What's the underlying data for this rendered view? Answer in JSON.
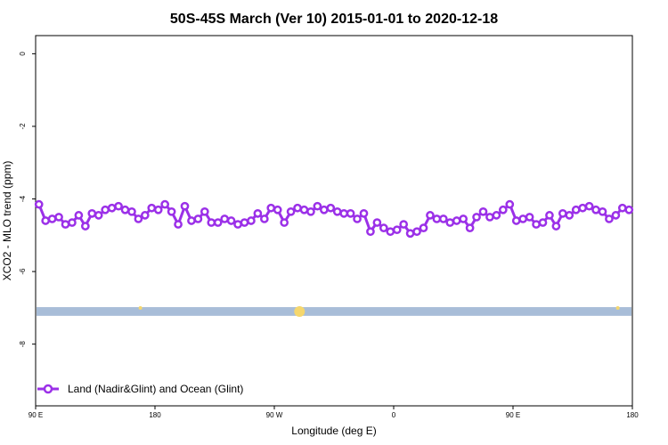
{
  "chart_data": {
    "type": "line",
    "title": "50S-45S March (Ver 10)   2015-01-01 to 2020-12-18",
    "xlabel": "Longitude (deg E)",
    "ylabel": "XCO2 - MLO trend (ppm)",
    "x_ticks": [
      {
        "value": 90,
        "label": "90 E"
      },
      {
        "value": 180,
        "label": "180"
      },
      {
        "value": 270,
        "label": "90 W"
      },
      {
        "value": 360,
        "label": "0"
      },
      {
        "value": 450,
        "label": "90 E"
      },
      {
        "value": 540,
        "label": "180"
      }
    ],
    "y_ticks": [
      {
        "value": 0,
        "label": "0"
      },
      {
        "value": -2,
        "label": "-2"
      },
      {
        "value": -4,
        "label": "-4"
      },
      {
        "value": -6,
        "label": "-6"
      },
      {
        "value": -8,
        "label": "-8"
      }
    ],
    "xlim": [
      90,
      540
    ],
    "ylim": [
      -9.7,
      0.5
    ],
    "grid": false,
    "legend_position": "bottom-left",
    "series": [
      {
        "name": "Land (Nadir&Glint) and Ocean (Glint)",
        "color": "#9b30e8",
        "marker": "open-circle",
        "x": [
          92.5,
          97.5,
          102.5,
          107.5,
          112.5,
          117.5,
          122.5,
          127.5,
          132.5,
          137.5,
          142.5,
          147.5,
          152.5,
          157.5,
          162.5,
          167.5,
          172.5,
          177.5,
          182.5,
          187.5,
          192.5,
          197.5,
          202.5,
          207.5,
          212.5,
          217.5,
          222.5,
          227.5,
          232.5,
          237.5,
          242.5,
          247.5,
          252.5,
          257.5,
          262.5,
          267.5,
          272.5,
          277.5,
          282.5,
          287.5,
          292.5,
          297.5,
          302.5,
          307.5,
          312.5,
          317.5,
          322.5,
          327.5,
          332.5,
          337.5,
          342.5,
          347.5,
          352.5,
          357.5,
          362.5,
          367.5,
          372.5,
          377.5,
          382.5,
          387.5,
          392.5,
          397.5,
          402.5,
          407.5,
          412.5,
          417.5,
          422.5,
          427.5,
          432.5,
          437.5,
          442.5,
          447.5,
          452.5,
          457.5,
          462.5,
          467.5,
          472.5,
          477.5,
          482.5,
          487.5,
          492.5,
          497.5,
          502.5,
          507.5,
          512.5,
          517.5,
          522.5,
          527.5,
          532.5,
          537.5
        ],
        "y": [
          -4.15,
          -4.6,
          -4.55,
          -4.5,
          -4.7,
          -4.65,
          -4.45,
          -4.75,
          -4.4,
          -4.45,
          -4.3,
          -4.25,
          -4.2,
          -4.3,
          -4.35,
          -4.55,
          -4.45,
          -4.25,
          -4.3,
          -4.15,
          -4.35,
          -4.7,
          -4.2,
          -4.6,
          -4.55,
          -4.35,
          -4.65,
          -4.65,
          -4.55,
          -4.6,
          -4.7,
          -4.65,
          -4.6,
          -4.4,
          -4.55,
          -4.25,
          -4.3,
          -4.65,
          -4.35,
          -4.25,
          -4.3,
          -4.35,
          -4.2,
          -4.3,
          -4.25,
          -4.35,
          -4.4,
          -4.4,
          -4.55,
          -4.4,
          -4.9,
          -4.65,
          -4.8,
          -4.9,
          -4.85,
          -4.7,
          -4.95,
          -4.9,
          -4.8,
          -4.45,
          -4.55,
          -4.55,
          -4.65,
          -4.6,
          -4.55,
          -4.8,
          -4.5,
          -4.35,
          -4.5,
          -4.45,
          -4.3,
          -4.15,
          -4.6,
          -4.55,
          -4.5,
          -4.7,
          -4.65,
          -4.45,
          -4.75,
          -4.4,
          -4.45,
          -4.3,
          -4.25,
          -4.2,
          -4.3,
          -4.35,
          -4.55,
          -4.45,
          -4.25,
          -4.3
        ]
      }
    ],
    "band": {
      "y_min": -7.22,
      "y_max": -6.98,
      "color": "#a8bdd8"
    },
    "band_markers": [
      {
        "x": 169,
        "size": 2,
        "color": "#f5d76e"
      },
      {
        "x": 289,
        "size": 6,
        "color": "#f5d76e"
      },
      {
        "x": 529,
        "size": 2,
        "color": "#f5d76e"
      }
    ]
  }
}
